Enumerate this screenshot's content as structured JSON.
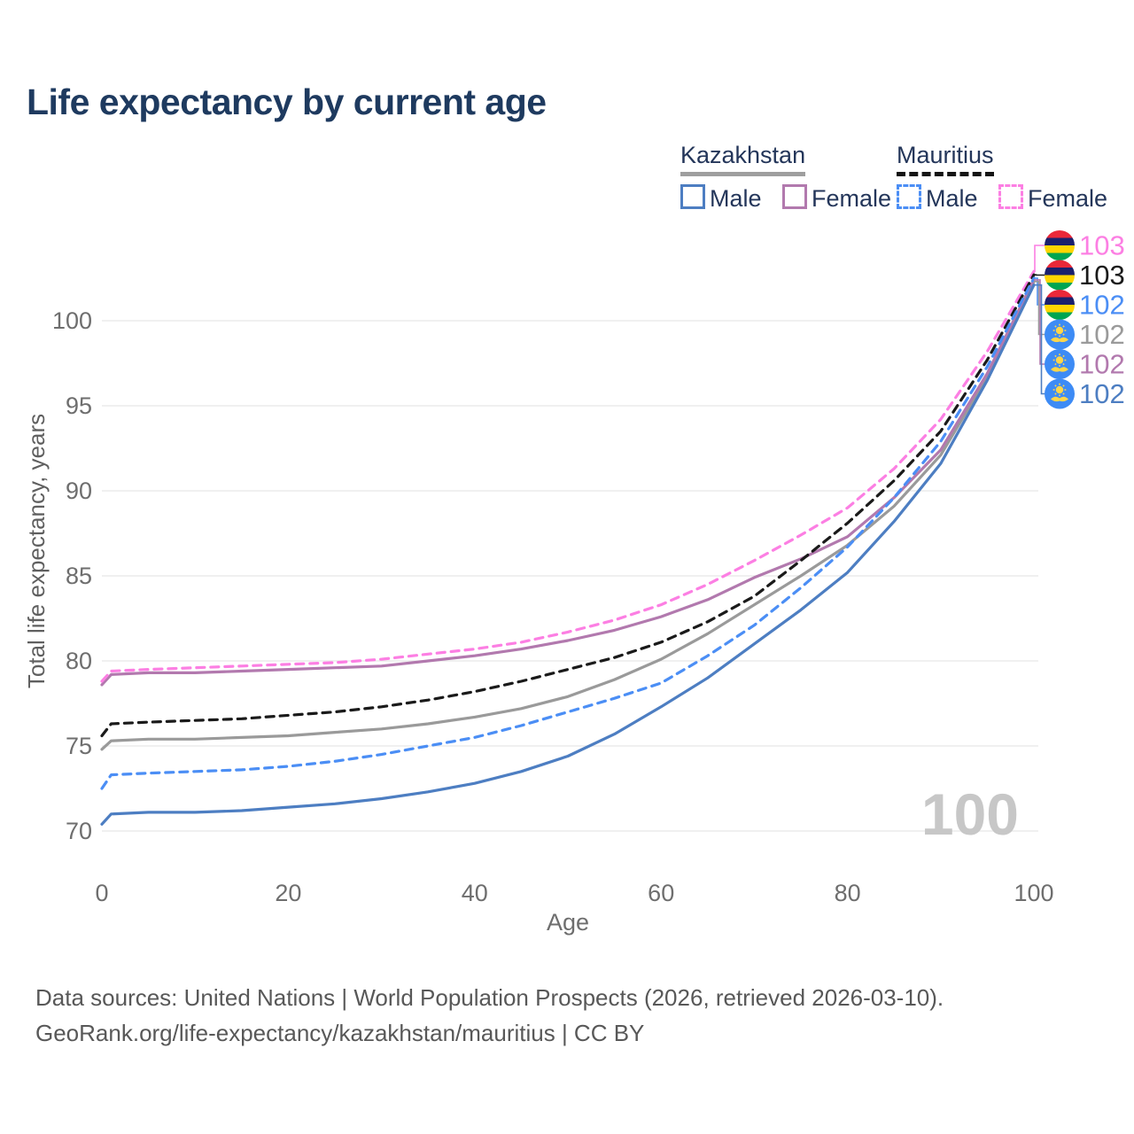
{
  "title": "Life expectancy by current age",
  "legend": {
    "groups": [
      {
        "country": "Kazakhstan",
        "line_style": "solid",
        "underline_color": "#9e9e9e",
        "items": [
          {
            "label": "Male",
            "color": "#4d7ec2",
            "dashed": false
          },
          {
            "label": "Female",
            "color": "#b279ae",
            "dashed": false
          }
        ]
      },
      {
        "country": "Mauritius",
        "line_style": "dashed",
        "underline_color": "#141414",
        "items": [
          {
            "label": "Male",
            "color": "#4b8ef5",
            "dashed": true
          },
          {
            "label": "Female",
            "color": "#fc7fe3",
            "dashed": true
          }
        ]
      }
    ]
  },
  "footer": {
    "line1": "Data sources: United Nations | World Population Prospects (2026, retrieved 2026-03-10).",
    "line2": "GeoRank.org/life-expectancy/kazakhstan/mauritius | CC BY"
  },
  "chart_data": {
    "type": "line",
    "title": "Life expectancy by current age",
    "xlabel": "Age",
    "ylabel": "Total life expectancy, years",
    "xlim": [
      0,
      100
    ],
    "ylim": [
      69,
      104
    ],
    "xticks": [
      0,
      20,
      40,
      60,
      80,
      100
    ],
    "yticks": [
      70,
      75,
      80,
      85,
      90,
      95,
      100
    ],
    "grid": "horizontal",
    "watermark": "100",
    "x": [
      0,
      1,
      5,
      10,
      15,
      20,
      25,
      30,
      35,
      40,
      45,
      50,
      55,
      60,
      65,
      70,
      75,
      80,
      85,
      90,
      95,
      100
    ],
    "series": [
      {
        "name": "Mauritius Female",
        "slug": "mauritius-female",
        "country": "Mauritius",
        "sex": "Female",
        "color": "#fc7fe3",
        "dash": true,
        "flag": "mauritius",
        "end_label": "103",
        "values": [
          78.8,
          79.4,
          79.5,
          79.6,
          79.7,
          79.8,
          79.9,
          80.1,
          80.4,
          80.7,
          81.1,
          81.7,
          82.4,
          83.3,
          84.5,
          85.9,
          87.4,
          89.0,
          91.3,
          94.2,
          98.2,
          102.9
        ]
      },
      {
        "name": "Mauritius Both Sexes",
        "slug": "mauritius-all",
        "country": "Mauritius",
        "sex": "Both",
        "color": "#1a1a1a",
        "dash": true,
        "flag": "mauritius",
        "end_label": "103",
        "values": [
          75.6,
          76.3,
          76.4,
          76.5,
          76.6,
          76.8,
          77.0,
          77.3,
          77.7,
          78.2,
          78.8,
          79.5,
          80.2,
          81.1,
          82.3,
          83.8,
          85.9,
          88.1,
          90.6,
          93.5,
          97.7,
          102.7
        ]
      },
      {
        "name": "Mauritius Male",
        "slug": "mauritius-male",
        "country": "Mauritius",
        "sex": "Male",
        "color": "#4b8ef5",
        "dash": true,
        "flag": "mauritius",
        "end_label": "102",
        "values": [
          72.5,
          73.3,
          73.4,
          73.5,
          73.6,
          73.8,
          74.1,
          74.5,
          75.0,
          75.5,
          76.2,
          77.0,
          77.8,
          78.7,
          80.3,
          82.1,
          84.3,
          86.7,
          89.6,
          92.9,
          97.3,
          102.5
        ]
      },
      {
        "name": "Kazakhstan Both Sexes",
        "slug": "kazakhstan-all",
        "country": "Kazakhstan",
        "sex": "Both",
        "color": "#9a9a9a",
        "dash": false,
        "flag": "kazakhstan",
        "end_label": "102",
        "values": [
          74.8,
          75.3,
          75.4,
          75.4,
          75.5,
          75.6,
          75.8,
          76.0,
          76.3,
          76.7,
          77.2,
          77.9,
          78.9,
          80.1,
          81.6,
          83.3,
          85.0,
          86.8,
          89.1,
          92.1,
          96.7,
          102.3
        ]
      },
      {
        "name": "Kazakhstan Female",
        "slug": "kazakhstan-female",
        "country": "Kazakhstan",
        "sex": "Female",
        "color": "#b279ae",
        "dash": false,
        "flag": "kazakhstan",
        "end_label": "102",
        "values": [
          78.6,
          79.2,
          79.3,
          79.3,
          79.4,
          79.5,
          79.6,
          79.7,
          80.0,
          80.3,
          80.7,
          81.2,
          81.8,
          82.6,
          83.6,
          84.9,
          86.0,
          87.3,
          89.6,
          92.4,
          96.9,
          102.4
        ]
      },
      {
        "name": "Kazakhstan Male",
        "slug": "kazakhstan-male",
        "country": "Kazakhstan",
        "sex": "Male",
        "color": "#4d7ec2",
        "dash": false,
        "flag": "kazakhstan",
        "end_label": "102",
        "values": [
          70.4,
          71.0,
          71.1,
          71.1,
          71.2,
          71.4,
          71.6,
          71.9,
          72.3,
          72.8,
          73.5,
          74.4,
          75.7,
          77.3,
          79.0,
          81.0,
          83.0,
          85.2,
          88.2,
          91.6,
          96.5,
          102.1
        ]
      }
    ],
    "flag_colors": {
      "mauritius_stripes": [
        "#EA2839",
        "#1A206D",
        "#FFD500",
        "#00A551"
      ],
      "kazakhstan_bg": "#3d8bf5",
      "kazakhstan_emblem": "#ffd64a"
    },
    "axis_color": "#6e6e6e",
    "grid_color": "#ececec",
    "watermark_color": "#c7c7c7"
  }
}
